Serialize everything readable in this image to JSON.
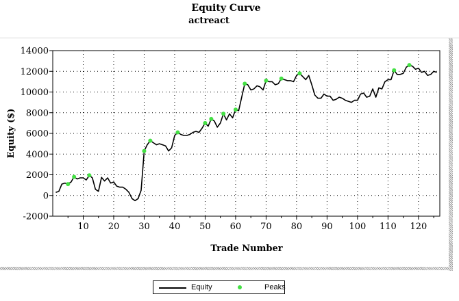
{
  "chart_data": {
    "type": "line",
    "title": "Equity Curve",
    "subtitle": "actreact",
    "xlabel": "Trade Number",
    "ylabel": "Equity ($)",
    "xlim": [
      0,
      127
    ],
    "ylim": [
      -2000,
      14000
    ],
    "x_ticks": [
      10,
      20,
      30,
      40,
      50,
      60,
      70,
      80,
      90,
      100,
      110,
      120
    ],
    "y_ticks": [
      -2000,
      0,
      2000,
      4000,
      6000,
      8000,
      10000,
      12000,
      14000
    ],
    "y_tick_labels": [
      "-2000",
      "0",
      "2000",
      "4000",
      "6000",
      "8000",
      "10000",
      "12000",
      "14000"
    ],
    "grid": true,
    "series": [
      {
        "name": "Equity",
        "color": "#000000",
        "points": [
          [
            1,
            300
          ],
          [
            2,
            400
          ],
          [
            3,
            1100
          ],
          [
            4,
            1200
          ],
          [
            5,
            1100
          ],
          [
            6,
            1300
          ],
          [
            7,
            1800
          ],
          [
            8,
            1600
          ],
          [
            9,
            1700
          ],
          [
            10,
            1700
          ],
          [
            11,
            1500
          ],
          [
            12,
            1950
          ],
          [
            13,
            1700
          ],
          [
            14,
            600
          ],
          [
            15,
            400
          ],
          [
            16,
            1750
          ],
          [
            17,
            1400
          ],
          [
            18,
            1700
          ],
          [
            19,
            1200
          ],
          [
            20,
            1300
          ],
          [
            21,
            900
          ],
          [
            22,
            800
          ],
          [
            23,
            800
          ],
          [
            24,
            600
          ],
          [
            25,
            300
          ],
          [
            26,
            -300
          ],
          [
            27,
            -500
          ],
          [
            28,
            -300
          ],
          [
            29,
            500
          ],
          [
            30,
            4300
          ],
          [
            31,
            4900
          ],
          [
            32,
            5300
          ],
          [
            33,
            5100
          ],
          [
            34,
            4900
          ],
          [
            35,
            5000
          ],
          [
            36,
            4900
          ],
          [
            37,
            4800
          ],
          [
            38,
            4300
          ],
          [
            39,
            4600
          ],
          [
            40,
            5800
          ],
          [
            41,
            6100
          ],
          [
            42,
            5900
          ],
          [
            43,
            5800
          ],
          [
            44,
            5800
          ],
          [
            45,
            5900
          ],
          [
            46,
            6100
          ],
          [
            47,
            6200
          ],
          [
            48,
            6100
          ],
          [
            49,
            6500
          ],
          [
            50,
            7000
          ],
          [
            51,
            6700
          ],
          [
            52,
            7400
          ],
          [
            53,
            7200
          ],
          [
            54,
            6600
          ],
          [
            55,
            7000
          ],
          [
            56,
            7900
          ],
          [
            57,
            7300
          ],
          [
            58,
            7900
          ],
          [
            59,
            7500
          ],
          [
            60,
            8300
          ],
          [
            61,
            8200
          ],
          [
            62,
            9500
          ],
          [
            63,
            10800
          ],
          [
            64,
            10700
          ],
          [
            65,
            10200
          ],
          [
            66,
            10300
          ],
          [
            67,
            10600
          ],
          [
            68,
            10500
          ],
          [
            69,
            10200
          ],
          [
            70,
            11100
          ],
          [
            71,
            11000
          ],
          [
            72,
            11000
          ],
          [
            73,
            10700
          ],
          [
            74,
            10800
          ],
          [
            75,
            11300
          ],
          [
            76,
            11200
          ],
          [
            77,
            11100
          ],
          [
            78,
            11100
          ],
          [
            79,
            11000
          ],
          [
            80,
            11600
          ],
          [
            81,
            11800
          ],
          [
            82,
            11500
          ],
          [
            83,
            11200
          ],
          [
            84,
            11600
          ],
          [
            85,
            10700
          ],
          [
            86,
            9700
          ],
          [
            87,
            9400
          ],
          [
            88,
            9400
          ],
          [
            89,
            9800
          ],
          [
            90,
            9600
          ],
          [
            91,
            9600
          ],
          [
            92,
            9200
          ],
          [
            93,
            9300
          ],
          [
            94,
            9500
          ],
          [
            95,
            9400
          ],
          [
            96,
            9200
          ],
          [
            97,
            9100
          ],
          [
            98,
            9000
          ],
          [
            99,
            9200
          ],
          [
            100,
            9200
          ],
          [
            101,
            9800
          ],
          [
            102,
            9900
          ],
          [
            103,
            9500
          ],
          [
            104,
            9600
          ],
          [
            105,
            10300
          ],
          [
            106,
            9500
          ],
          [
            107,
            10400
          ],
          [
            108,
            10300
          ],
          [
            109,
            11000
          ],
          [
            110,
            11200
          ],
          [
            111,
            11200
          ],
          [
            112,
            12100
          ],
          [
            113,
            11700
          ],
          [
            114,
            11700
          ],
          [
            115,
            11800
          ],
          [
            116,
            12400
          ],
          [
            117,
            12600
          ],
          [
            118,
            12500
          ],
          [
            119,
            12200
          ],
          [
            120,
            12300
          ],
          [
            121,
            11900
          ],
          [
            122,
            12000
          ],
          [
            123,
            11600
          ],
          [
            124,
            11700
          ],
          [
            125,
            12000
          ],
          [
            126,
            11900
          ]
        ]
      },
      {
        "name": "Peaks",
        "color": "#44e044",
        "points": [
          [
            5,
            1100
          ],
          [
            7,
            1800
          ],
          [
            12,
            1950
          ],
          [
            30,
            4300
          ],
          [
            32,
            5300
          ],
          [
            41,
            6100
          ],
          [
            50,
            7000
          ],
          [
            52,
            7400
          ],
          [
            56,
            7900
          ],
          [
            60,
            8300
          ],
          [
            63,
            10800
          ],
          [
            70,
            11100
          ],
          [
            75,
            11300
          ],
          [
            81,
            11800
          ],
          [
            112,
            12100
          ],
          [
            117,
            12600
          ]
        ]
      }
    ],
    "legend": {
      "position": "bottom-center",
      "entries": [
        "Equity",
        "Peaks"
      ]
    }
  }
}
